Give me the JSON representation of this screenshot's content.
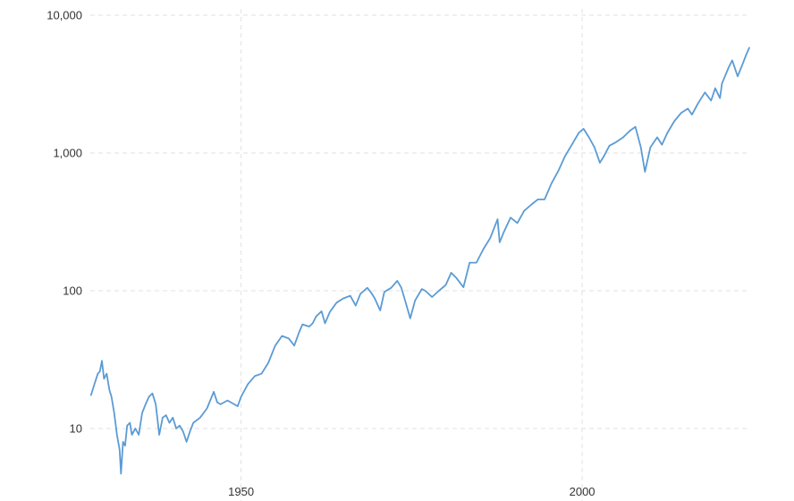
{
  "colors": {
    "line": "#5b9bd5",
    "grid": "#e2e2e2",
    "text": "#333333",
    "background": "#ffffff"
  },
  "chart_data": {
    "type": "line",
    "title": "",
    "xlabel": "",
    "ylabel": "",
    "yscale": "log",
    "grid": true,
    "xlim": [
      1927.9,
      2024.5
    ],
    "ylim": [
      5,
      10000
    ],
    "y_ticks": [
      {
        "value": 10,
        "label": "10"
      },
      {
        "value": 100,
        "label": "100"
      },
      {
        "value": 1000,
        "label": "1,000"
      },
      {
        "value": 10000,
        "label": "10,000"
      }
    ],
    "x_ticks": [
      {
        "value": 1950,
        "label": "1950"
      },
      {
        "value": 2000,
        "label": "2000"
      }
    ],
    "series": [
      {
        "color": "#5b9bd5",
        "points": [
          [
            1928.0,
            17.5
          ],
          [
            1928.5,
            21
          ],
          [
            1929.0,
            25
          ],
          [
            1929.3,
            26
          ],
          [
            1929.6,
            31
          ],
          [
            1929.9,
            23
          ],
          [
            1930.3,
            25
          ],
          [
            1930.7,
            19
          ],
          [
            1931.0,
            17
          ],
          [
            1931.4,
            13
          ],
          [
            1931.8,
            9
          ],
          [
            1932.2,
            7
          ],
          [
            1932.4,
            4.7
          ],
          [
            1932.7,
            8
          ],
          [
            1933.0,
            7.5
          ],
          [
            1933.3,
            10.5
          ],
          [
            1933.7,
            11
          ],
          [
            1934.0,
            9
          ],
          [
            1934.5,
            10
          ],
          [
            1935.0,
            9
          ],
          [
            1935.5,
            13
          ],
          [
            1936.0,
            15
          ],
          [
            1936.5,
            17
          ],
          [
            1937.0,
            18
          ],
          [
            1937.5,
            15
          ],
          [
            1938.0,
            9
          ],
          [
            1938.5,
            12
          ],
          [
            1939.0,
            12.5
          ],
          [
            1939.5,
            11
          ],
          [
            1940.0,
            12
          ],
          [
            1940.5,
            10
          ],
          [
            1941.0,
            10.5
          ],
          [
            1941.5,
            9.5
          ],
          [
            1942.0,
            8
          ],
          [
            1942.5,
            9.5
          ],
          [
            1943.0,
            11
          ],
          [
            1944.0,
            12
          ],
          [
            1945.0,
            14
          ],
          [
            1946.0,
            18.5
          ],
          [
            1946.5,
            15.5
          ],
          [
            1947.0,
            15
          ],
          [
            1948.0,
            16
          ],
          [
            1949.0,
            15
          ],
          [
            1949.5,
            14.5
          ],
          [
            1950.0,
            17
          ],
          [
            1951.0,
            21
          ],
          [
            1952.0,
            24
          ],
          [
            1953.0,
            25
          ],
          [
            1954.0,
            30
          ],
          [
            1955.0,
            40
          ],
          [
            1956.0,
            47
          ],
          [
            1957.0,
            45
          ],
          [
            1957.8,
            40
          ],
          [
            1958.5,
            50
          ],
          [
            1959.0,
            57
          ],
          [
            1960.0,
            55
          ],
          [
            1960.5,
            58
          ],
          [
            1961.0,
            65
          ],
          [
            1961.8,
            71
          ],
          [
            1962.3,
            58
          ],
          [
            1963.0,
            70
          ],
          [
            1964.0,
            82
          ],
          [
            1965.0,
            88
          ],
          [
            1966.0,
            92
          ],
          [
            1966.8,
            78
          ],
          [
            1967.5,
            95
          ],
          [
            1968.5,
            105
          ],
          [
            1969.0,
            98
          ],
          [
            1969.6,
            88
          ],
          [
            1970.4,
            72
          ],
          [
            1971.0,
            98
          ],
          [
            1972.0,
            105
          ],
          [
            1972.9,
            118
          ],
          [
            1973.5,
            105
          ],
          [
            1974.2,
            80
          ],
          [
            1974.8,
            63
          ],
          [
            1975.5,
            85
          ],
          [
            1976.5,
            103
          ],
          [
            1977.0,
            100
          ],
          [
            1978.0,
            90
          ],
          [
            1979.0,
            100
          ],
          [
            1980.0,
            110
          ],
          [
            1980.8,
            135
          ],
          [
            1981.5,
            125
          ],
          [
            1982.6,
            106
          ],
          [
            1983.5,
            160
          ],
          [
            1984.5,
            160
          ],
          [
            1985.5,
            200
          ],
          [
            1986.5,
            240
          ],
          [
            1987.6,
            330
          ],
          [
            1987.9,
            225
          ],
          [
            1988.5,
            265
          ],
          [
            1989.5,
            340
          ],
          [
            1990.5,
            310
          ],
          [
            1991.5,
            380
          ],
          [
            1992.5,
            420
          ],
          [
            1993.5,
            460
          ],
          [
            1994.5,
            460
          ],
          [
            1995.5,
            600
          ],
          [
            1996.5,
            740
          ],
          [
            1997.5,
            950
          ],
          [
            1998.5,
            1150
          ],
          [
            1999.5,
            1400
          ],
          [
            2000.2,
            1500
          ],
          [
            2001.0,
            1300
          ],
          [
            2001.8,
            1100
          ],
          [
            2002.6,
            850
          ],
          [
            2003.2,
            950
          ],
          [
            2004.0,
            1130
          ],
          [
            2005.0,
            1200
          ],
          [
            2006.0,
            1300
          ],
          [
            2007.0,
            1450
          ],
          [
            2007.8,
            1550
          ],
          [
            2008.6,
            1100
          ],
          [
            2009.2,
            730
          ],
          [
            2010.0,
            1100
          ],
          [
            2011.0,
            1300
          ],
          [
            2011.7,
            1150
          ],
          [
            2012.5,
            1400
          ],
          [
            2013.5,
            1700
          ],
          [
            2014.5,
            1950
          ],
          [
            2015.5,
            2100
          ],
          [
            2016.1,
            1900
          ],
          [
            2017.0,
            2300
          ],
          [
            2018.0,
            2750
          ],
          [
            2018.9,
            2400
          ],
          [
            2019.5,
            2950
          ],
          [
            2020.2,
            2500
          ],
          [
            2020.5,
            3200
          ],
          [
            2021.5,
            4200
          ],
          [
            2022.0,
            4700
          ],
          [
            2022.8,
            3600
          ],
          [
            2023.5,
            4400
          ],
          [
            2024.0,
            5100
          ],
          [
            2024.5,
            5800
          ]
        ]
      }
    ]
  }
}
